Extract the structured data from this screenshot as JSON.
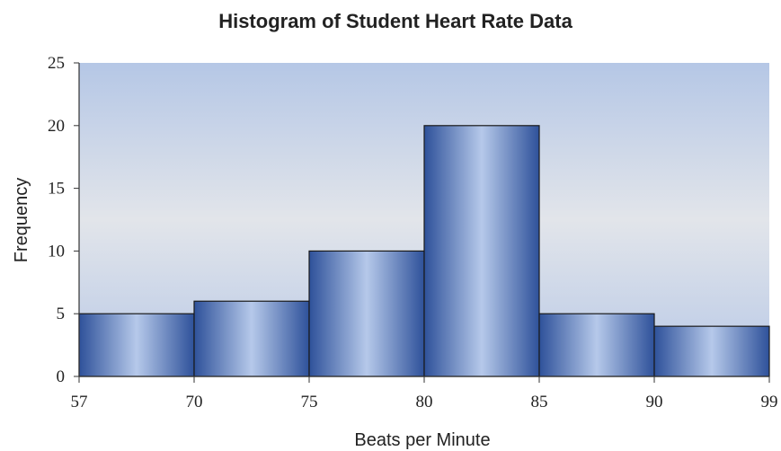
{
  "chart_data": {
    "type": "histogram",
    "title": "Histogram of Student Heart Rate Data",
    "x_label": "Beats per Minute",
    "y_label": "Frequency",
    "bins": [
      57,
      70,
      75,
      80,
      85,
      90,
      99
    ],
    "values": [
      5,
      6,
      10,
      20,
      5,
      4
    ],
    "ylim": [
      0,
      25
    ],
    "yticks": [
      0,
      5,
      10,
      15,
      20,
      25
    ],
    "color": "#2f5597"
  }
}
